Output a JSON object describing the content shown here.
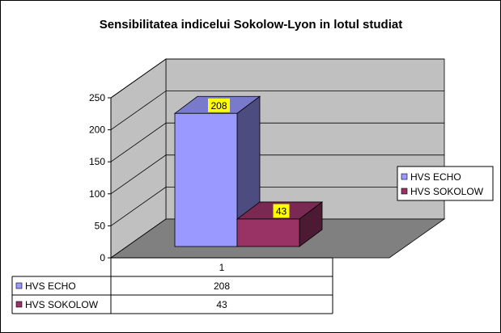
{
  "chart_data": {
    "type": "bar",
    "title": "Sensibilitatea indicelui Sokolow-Lyon in lotul studiat",
    "categories": [
      "1"
    ],
    "series": [
      {
        "name": "HVS ECHO",
        "values": [
          208
        ],
        "color": "#9999FF",
        "side_color": "#4C4C80",
        "top_color": "#7A7ACC"
      },
      {
        "name": "HVS SOKOLOW",
        "values": [
          43
        ],
        "color": "#993366",
        "side_color": "#4C1A33",
        "top_color": "#7A2952"
      }
    ],
    "ylim": [
      0,
      250
    ],
    "yticks": [
      "0",
      "50",
      "100",
      "150",
      "200",
      "250"
    ],
    "grid": true,
    "legend": "right",
    "data_label_color": "#FFFF00",
    "wall_color": "#C0C0C0",
    "floor_color": "#808080"
  }
}
